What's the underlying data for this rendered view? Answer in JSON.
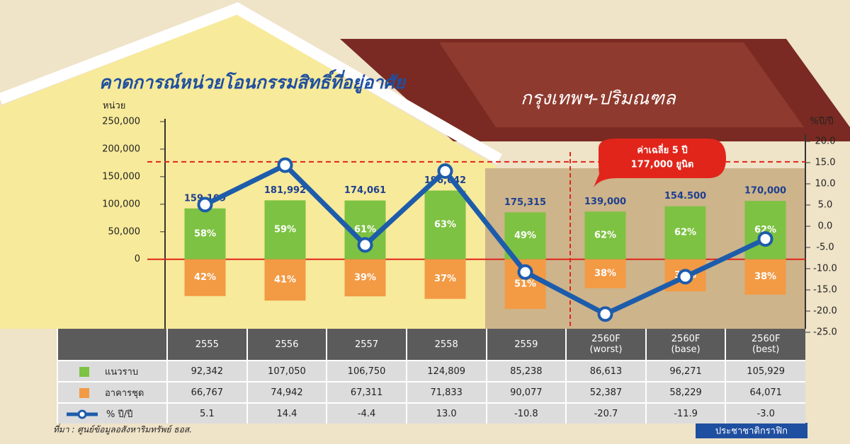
{
  "chart_data": {
    "type": "bar-line",
    "title": "คาดการณ์หน่วยโอนกรรมสิทธิ์ที่อยู่อาศัย",
    "subtitle": "กรุงเทพฯ-ปริมณฑล",
    "y_label": "หน่วย",
    "y2_label": "%ปี/ปี",
    "categories": [
      "2555",
      "2556",
      "2557",
      "2558",
      "2559",
      "2560F\n(worst)",
      "2560F\n(base)",
      "2560F\n(best)"
    ],
    "series": [
      {
        "name": "แนวราบ",
        "color": "#7dc242",
        "values": [
          92342,
          107050,
          106750,
          124809,
          85238,
          86613,
          96271,
          105929
        ],
        "value_labels": [
          "92,342",
          "107,050",
          "106,750",
          "124,809",
          "85,238",
          "86,613",
          "96,271",
          "105,929"
        ],
        "share_labels": [
          "58%",
          "59%",
          "61%",
          "63%",
          "49%",
          "62%",
          "62%",
          "62%"
        ]
      },
      {
        "name": "อาคารชุด",
        "color": "#f39a44",
        "values": [
          66767,
          74942,
          67311,
          71833,
          90077,
          52387,
          58229,
          64071
        ],
        "value_labels": [
          "66,767",
          "74,942",
          "67,311",
          "71,833",
          "90,077",
          "52,387",
          "58,229",
          "64,071"
        ],
        "share_labels": [
          "42%",
          "41%",
          "39%",
          "37%",
          "51%",
          "38%",
          "38%",
          "38%"
        ]
      },
      {
        "name": "% ปี/ปี",
        "color": "#1d5cab",
        "axis": "y2",
        "values": [
          5.1,
          14.4,
          -4.4,
          13.0,
          -10.8,
          -20.7,
          -11.9,
          -3.0
        ],
        "value_labels": [
          "5.1",
          "14.4",
          "-4.4",
          "13.0",
          "-10.8",
          "-20.7",
          "-11.9",
          "-3.0"
        ]
      }
    ],
    "total_labels": [
      "159,109",
      "181,992",
      "174,061",
      "196,642",
      "175,315",
      "139,000",
      "154.500",
      "170,000"
    ],
    "annotation": {
      "text": [
        "ค่าเฉลี่ย 5 ปี",
        "177,000 ยูนิต"
      ],
      "value": 177000
    },
    "ylim": [
      -130000,
      250000
    ],
    "yticks": [
      0,
      {
        "value": 50000,
        "label": "50,000"
      },
      {
        "value": 100000,
        "label": "100,000"
      },
      {
        "value": 150000,
        "label": "150,000"
      },
      {
        "value": 200000,
        "label": "200,000"
      },
      {
        "value": 250000,
        "label": "250,000"
      }
    ],
    "y2lim": [
      -25,
      20
    ],
    "y2ticks": [
      {
        "value": 20,
        "label": "20.0"
      },
      {
        "value": 15,
        "label": "15.0"
      },
      {
        "value": 10,
        "label": "10.0"
      },
      {
        "value": 5,
        "label": "5.0"
      },
      {
        "value": 0,
        "label": "0.0"
      },
      {
        "value": -5,
        "label": "-5.0"
      },
      {
        "value": -10,
        "label": "-10.0"
      },
      {
        "value": -15,
        "label": "-15.0"
      },
      {
        "value": -20,
        "label": "-20.0"
      },
      {
        "value": -25,
        "label": "-25.0"
      }
    ],
    "source": "ที่มา : ศูนย์ข้อมูลอสังหาริมทรัพย์ ธอส.",
    "credit": "ประชาชาติกราฟิก"
  }
}
